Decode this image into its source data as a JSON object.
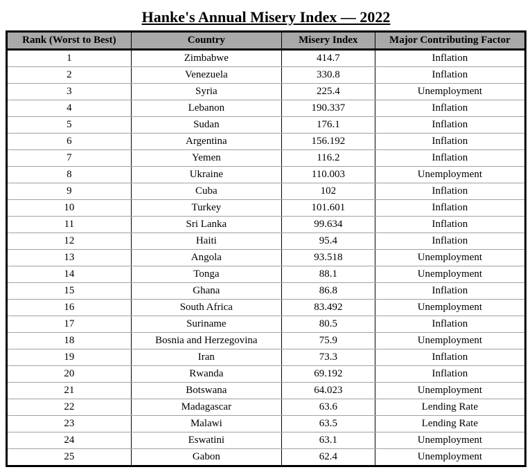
{
  "title": "Hanke's Annual Misery Index — 2022",
  "table": {
    "type": "table",
    "header_background": "#a9a9a9",
    "border_color": "#000000",
    "row_border_color": "#a0a0a0",
    "outer_border_width": 3,
    "font_family": "Times New Roman",
    "title_fontsize": 22,
    "header_fontsize": 15,
    "cell_fontsize": 15,
    "columns": [
      {
        "key": "rank",
        "label": "Rank (Worst to Best)",
        "width_pct": 24,
        "align": "center"
      },
      {
        "key": "country",
        "label": "Country",
        "width_pct": 29,
        "align": "center"
      },
      {
        "key": "misery",
        "label": "Misery Index",
        "width_pct": 18,
        "align": "center"
      },
      {
        "key": "factor",
        "label": "Major Contributing Factor",
        "width_pct": 29,
        "align": "center"
      }
    ],
    "rows": [
      {
        "rank": "1",
        "country": "Zimbabwe",
        "misery": "414.7",
        "factor": "Inflation"
      },
      {
        "rank": "2",
        "country": "Venezuela",
        "misery": "330.8",
        "factor": "Inflation"
      },
      {
        "rank": "3",
        "country": "Syria",
        "misery": "225.4",
        "factor": "Unemployment"
      },
      {
        "rank": "4",
        "country": "Lebanon",
        "misery": "190.337",
        "factor": "Inflation"
      },
      {
        "rank": "5",
        "country": "Sudan",
        "misery": "176.1",
        "factor": "Inflation"
      },
      {
        "rank": "6",
        "country": "Argentina",
        "misery": "156.192",
        "factor": "Inflation"
      },
      {
        "rank": "7",
        "country": "Yemen",
        "misery": "116.2",
        "factor": "Inflation"
      },
      {
        "rank": "8",
        "country": "Ukraine",
        "misery": "110.003",
        "factor": "Unemployment"
      },
      {
        "rank": "9",
        "country": "Cuba",
        "misery": "102",
        "factor": "Inflation"
      },
      {
        "rank": "10",
        "country": "Turkey",
        "misery": "101.601",
        "factor": "Inflation"
      },
      {
        "rank": "11",
        "country": "Sri Lanka",
        "misery": "99.634",
        "factor": "Inflation"
      },
      {
        "rank": "12",
        "country": "Haiti",
        "misery": "95.4",
        "factor": "Inflation"
      },
      {
        "rank": "13",
        "country": "Angola",
        "misery": "93.518",
        "factor": "Unemployment"
      },
      {
        "rank": "14",
        "country": "Tonga",
        "misery": "88.1",
        "factor": "Unemployment"
      },
      {
        "rank": "15",
        "country": "Ghana",
        "misery": "86.8",
        "factor": "Inflation"
      },
      {
        "rank": "16",
        "country": "South Africa",
        "misery": "83.492",
        "factor": "Unemployment"
      },
      {
        "rank": "17",
        "country": "Suriname",
        "misery": "80.5",
        "factor": "Inflation"
      },
      {
        "rank": "18",
        "country": "Bosnia and Herzegovina",
        "misery": "75.9",
        "factor": "Unemployment"
      },
      {
        "rank": "19",
        "country": "Iran",
        "misery": "73.3",
        "factor": "Inflation"
      },
      {
        "rank": "20",
        "country": "Rwanda",
        "misery": "69.192",
        "factor": "Inflation"
      },
      {
        "rank": "21",
        "country": "Botswana",
        "misery": "64.023",
        "factor": "Unemployment"
      },
      {
        "rank": "22",
        "country": "Madagascar",
        "misery": "63.6",
        "factor": "Lending Rate"
      },
      {
        "rank": "23",
        "country": "Malawi",
        "misery": "63.5",
        "factor": "Lending Rate"
      },
      {
        "rank": "24",
        "country": "Eswatini",
        "misery": "63.1",
        "factor": "Unemployment"
      },
      {
        "rank": "25",
        "country": "Gabon",
        "misery": "62.4",
        "factor": "Unemployment"
      }
    ]
  }
}
